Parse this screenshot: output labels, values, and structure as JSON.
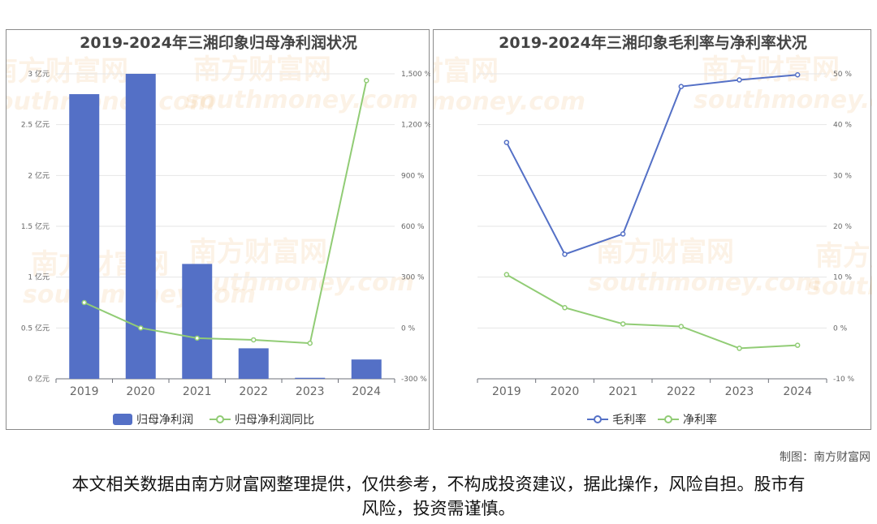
{
  "colors": {
    "bar": "#5470c6",
    "green": "#91cc75",
    "blue": "#5470c6",
    "grid": "#e6e6e6"
  },
  "watermark": {
    "cn": "南方财富网",
    "en": "southmoney.com"
  },
  "chart_data": [
    {
      "type": "bar",
      "title": "2019-2024年三湘印象归母净利润状况",
      "categories": [
        "2019",
        "2020",
        "2021",
        "2022",
        "2023",
        "2024"
      ],
      "series": [
        {
          "name": "归母净利润",
          "type": "bar",
          "axis": "left",
          "values": [
            2.8,
            3.0,
            1.13,
            0.3,
            0.01,
            0.19
          ]
        },
        {
          "name": "归母净利润同比",
          "type": "line",
          "axis": "right",
          "values": [
            150,
            0,
            -60,
            -70,
            -90,
            1460
          ]
        }
      ],
      "y_left": {
        "min": 0,
        "max": 3,
        "ticks": [
          "0 亿元",
          "0.5 亿元",
          "1 亿元",
          "1.5 亿元",
          "2 亿元",
          "2.5 亿元",
          "3 亿元"
        ]
      },
      "y_right": {
        "min": -300,
        "max": 1500,
        "ticks": [
          "-300 %",
          "0 %",
          "300 %",
          "600 %",
          "900 %",
          "1,200 %",
          "1,500 %"
        ]
      },
      "legend": "bottom",
      "grid": true
    },
    {
      "type": "line",
      "title": "2019-2024年三湘印象毛利率与净利率状况",
      "categories": [
        "2019",
        "2020",
        "2021",
        "2022",
        "2023",
        "2024"
      ],
      "series": [
        {
          "name": "毛利率",
          "values": [
            36.5,
            14.5,
            18.5,
            47.5,
            48.8,
            49.8
          ]
        },
        {
          "name": "净利率",
          "values": [
            10.5,
            4.0,
            0.8,
            0.3,
            -4.0,
            -3.4
          ]
        }
      ],
      "y": {
        "min": -10,
        "max": 50,
        "ticks": [
          "-10 %",
          "0 %",
          "10 %",
          "20 %",
          "30 %",
          "40 %",
          "50 %"
        ]
      },
      "legend": "bottom",
      "grid": true
    }
  ],
  "footer": {
    "credit": "制图：南方财富网",
    "disclaimer": "本文相关数据由南方财富网整理提供，仅供参考，不构成投资建议，据此操作，风险自担。股市有风险，投资需谨慎。"
  }
}
